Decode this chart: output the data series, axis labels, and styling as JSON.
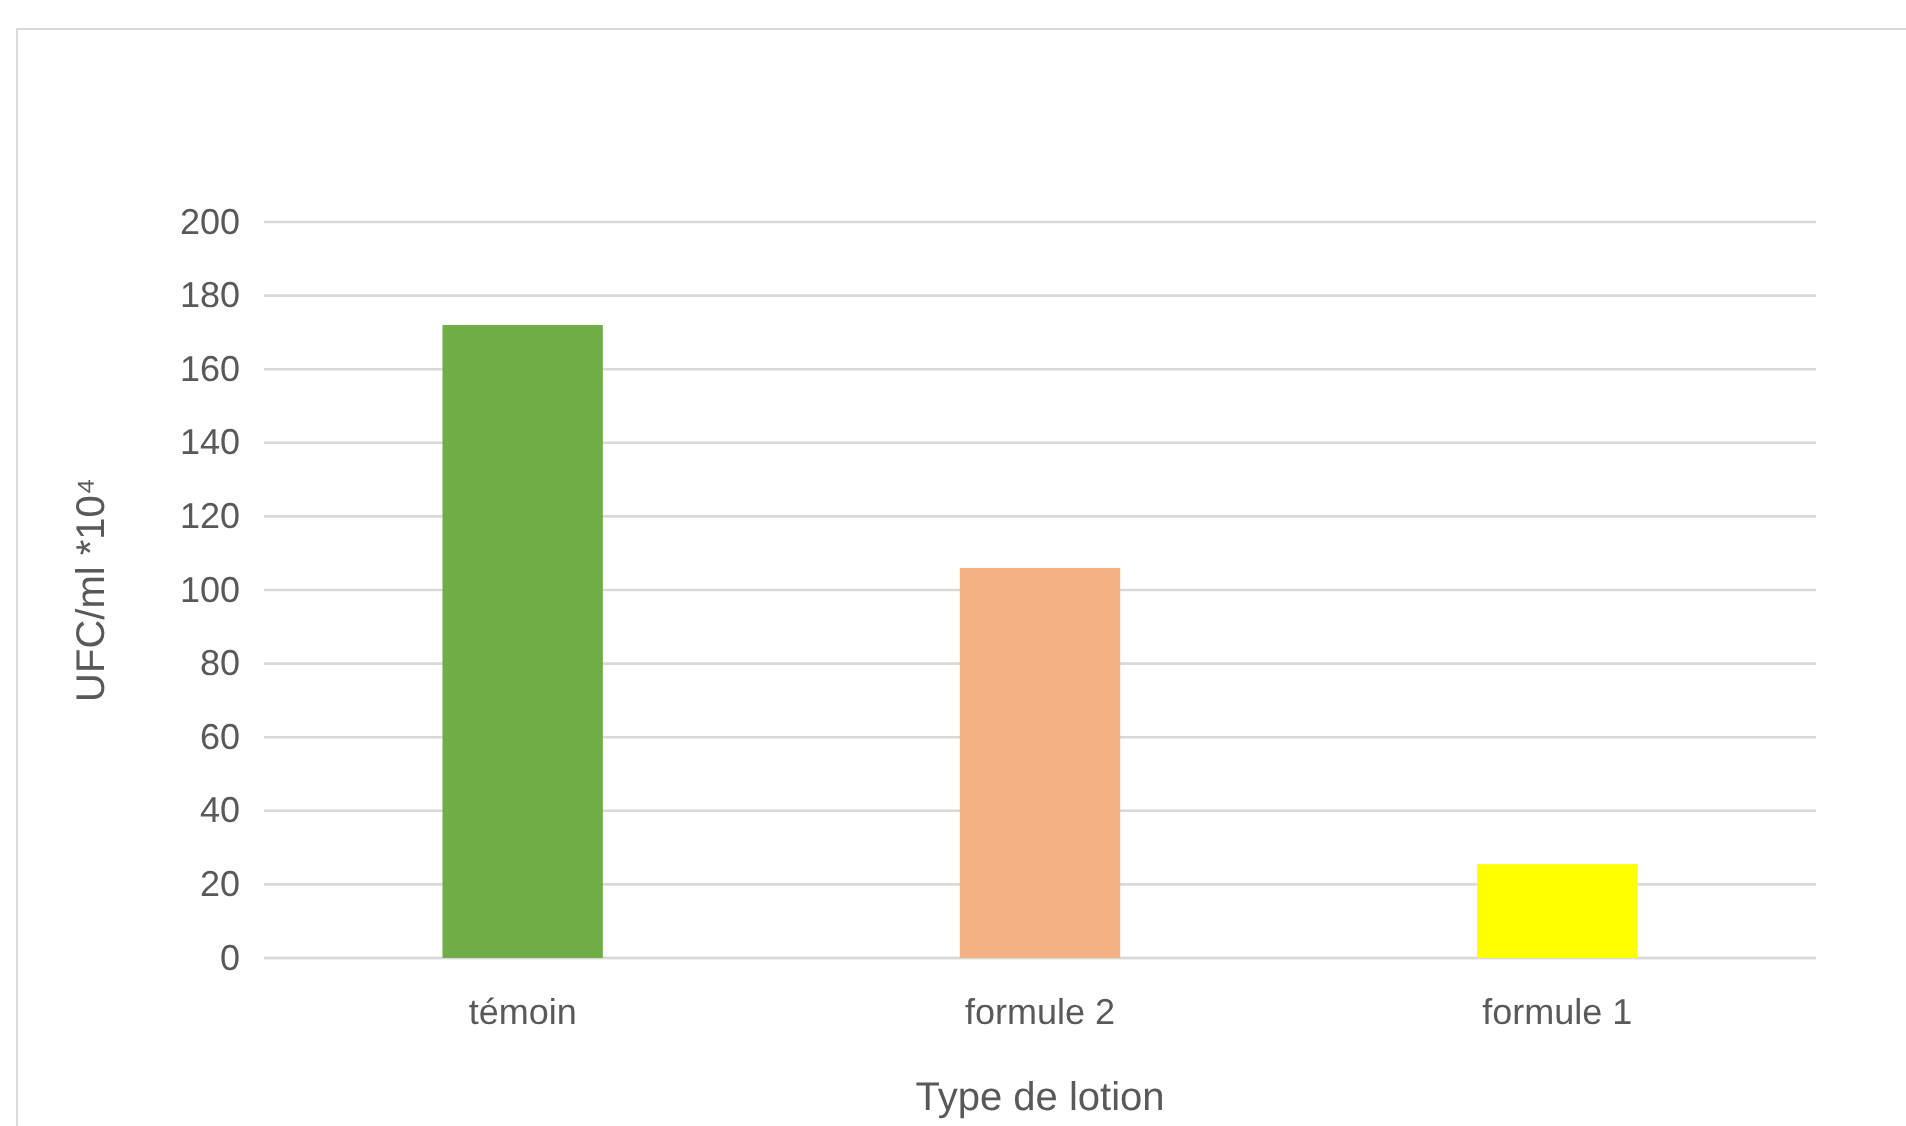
{
  "chart_data": {
    "type": "bar",
    "categories": [
      "témoin",
      "formule 2",
      "formule 1"
    ],
    "values": [
      172,
      106,
      25.5
    ],
    "colors": [
      "#70ad47",
      "#f4b183",
      "#ffff00"
    ],
    "xlabel": "Type de lotion",
    "ylabel": "UFC/ml  *10⁴",
    "ylim": [
      0,
      200
    ],
    "yticks": [
      0,
      20,
      40,
      60,
      80,
      100,
      120,
      140,
      160,
      180,
      200
    ],
    "grid": "y"
  }
}
